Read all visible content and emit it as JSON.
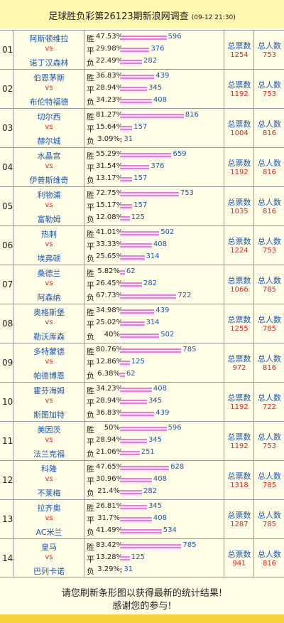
{
  "header": {
    "title": "足球胜负彩第26123期新浪网调查",
    "time": "(09-12 21:30)"
  },
  "labels": {
    "vs": "vs",
    "outcomes": [
      "胜",
      "平",
      "负"
    ],
    "votes": "总票数",
    "people": "总人数"
  },
  "matches": [
    {
      "no": "01",
      "home": "阿斯顿维拉",
      "away": "诺丁汉森林",
      "outcomes": [
        {
          "pct": "47.53%",
          "count": 596
        },
        {
          "pct": "29.98%",
          "count": 376
        },
        {
          "pct": "22.49%",
          "count": 282
        }
      ],
      "votes": 1254,
      "people": 753
    },
    {
      "no": "02",
      "home": "伯恩茅斯",
      "away": "布伦特福德",
      "outcomes": [
        {
          "pct": "36.83%",
          "count": 439
        },
        {
          "pct": "28.94%",
          "count": 345
        },
        {
          "pct": "34.23%",
          "count": 408
        }
      ],
      "votes": 1192,
      "people": 753
    },
    {
      "no": "03",
      "home": "切尔西",
      "away": "赫尔城",
      "outcomes": [
        {
          "pct": "81.27%",
          "count": 816
        },
        {
          "pct": "15.64%",
          "count": 157
        },
        {
          "pct": "3.09%",
          "count": 31
        }
      ],
      "votes": 1004,
      "people": 816
    },
    {
      "no": "04",
      "home": "水晶宫",
      "away": "伊普斯维奇",
      "outcomes": [
        {
          "pct": "55.29%",
          "count": 659
        },
        {
          "pct": "31.54%",
          "count": 376
        },
        {
          "pct": "13.17%",
          "count": 157
        }
      ],
      "votes": 1192,
      "people": 816
    },
    {
      "no": "05",
      "home": "利物浦",
      "away": "富勒姆",
      "outcomes": [
        {
          "pct": "72.75%",
          "count": 753
        },
        {
          "pct": "15.17%",
          "count": 157
        },
        {
          "pct": "12.08%",
          "count": 125
        }
      ],
      "votes": 1035,
      "people": 816
    },
    {
      "no": "06",
      "home": "热刺",
      "away": "埃弗顿",
      "outcomes": [
        {
          "pct": "41.01%",
          "count": 502
        },
        {
          "pct": "33.33%",
          "count": 408
        },
        {
          "pct": "25.65%",
          "count": 314
        }
      ],
      "votes": 1224,
      "people": 753
    },
    {
      "no": "07",
      "home": "桑德兰",
      "away": "阿森纳",
      "outcomes": [
        {
          "pct": "5.82%",
          "count": 62
        },
        {
          "pct": "26.45%",
          "count": 282
        },
        {
          "pct": "67.73%",
          "count": 722
        }
      ],
      "votes": 1066,
      "people": 785
    },
    {
      "no": "08",
      "home": "奥格斯堡",
      "away": "勒沃库森",
      "outcomes": [
        {
          "pct": "34.98%",
          "count": 439
        },
        {
          "pct": "25.02%",
          "count": 314
        },
        {
          "pct": "40%",
          "count": 502
        }
      ],
      "votes": 1255,
      "people": 785
    },
    {
      "no": "09",
      "home": "多特蒙德",
      "away": "帕德博恩",
      "outcomes": [
        {
          "pct": "80.76%",
          "count": 785
        },
        {
          "pct": "12.86%",
          "count": 125
        },
        {
          "pct": "6.38%",
          "count": 62
        }
      ],
      "votes": 972,
      "people": 816
    },
    {
      "no": "10",
      "home": "霍芬海姆",
      "away": "斯图加特",
      "outcomes": [
        {
          "pct": "34.23%",
          "count": 408
        },
        {
          "pct": "28.94%",
          "count": 345
        },
        {
          "pct": "36.83%",
          "count": 439
        }
      ],
      "votes": 1192,
      "people": 722
    },
    {
      "no": "11",
      "home": "美因茨",
      "away": "法兰克福",
      "outcomes": [
        {
          "pct": "50%",
          "count": 596
        },
        {
          "pct": "28.94%",
          "count": 345
        },
        {
          "pct": "21.06%",
          "count": 251
        }
      ],
      "votes": 1192,
      "people": 753
    },
    {
      "no": "12",
      "home": "科隆",
      "away": "不莱梅",
      "outcomes": [
        {
          "pct": "47.65%",
          "count": 628
        },
        {
          "pct": "30.96%",
          "count": 408
        },
        {
          "pct": "21.4%",
          "count": 282
        }
      ],
      "votes": 1318,
      "people": 785
    },
    {
      "no": "13",
      "home": "拉齐奥",
      "away": "AC米兰",
      "outcomes": [
        {
          "pct": "26.81%",
          "count": 345
        },
        {
          "pct": "31.7%",
          "count": 408
        },
        {
          "pct": "41.49%",
          "count": 534
        }
      ],
      "votes": 1287,
      "people": 785
    },
    {
      "no": "14",
      "home": "皇马",
      "away": "巴列卡诺",
      "outcomes": [
        {
          "pct": "83.42%",
          "count": 785
        },
        {
          "pct": "13.28%",
          "count": 125
        },
        {
          "pct": "3.29%",
          "count": 31
        }
      ],
      "votes": 941,
      "people": 816
    }
  ],
  "footer": {
    "line1": "请您刷新条形图以获得最新的统计结果!",
    "line2": "感谢您的参与!"
  }
}
